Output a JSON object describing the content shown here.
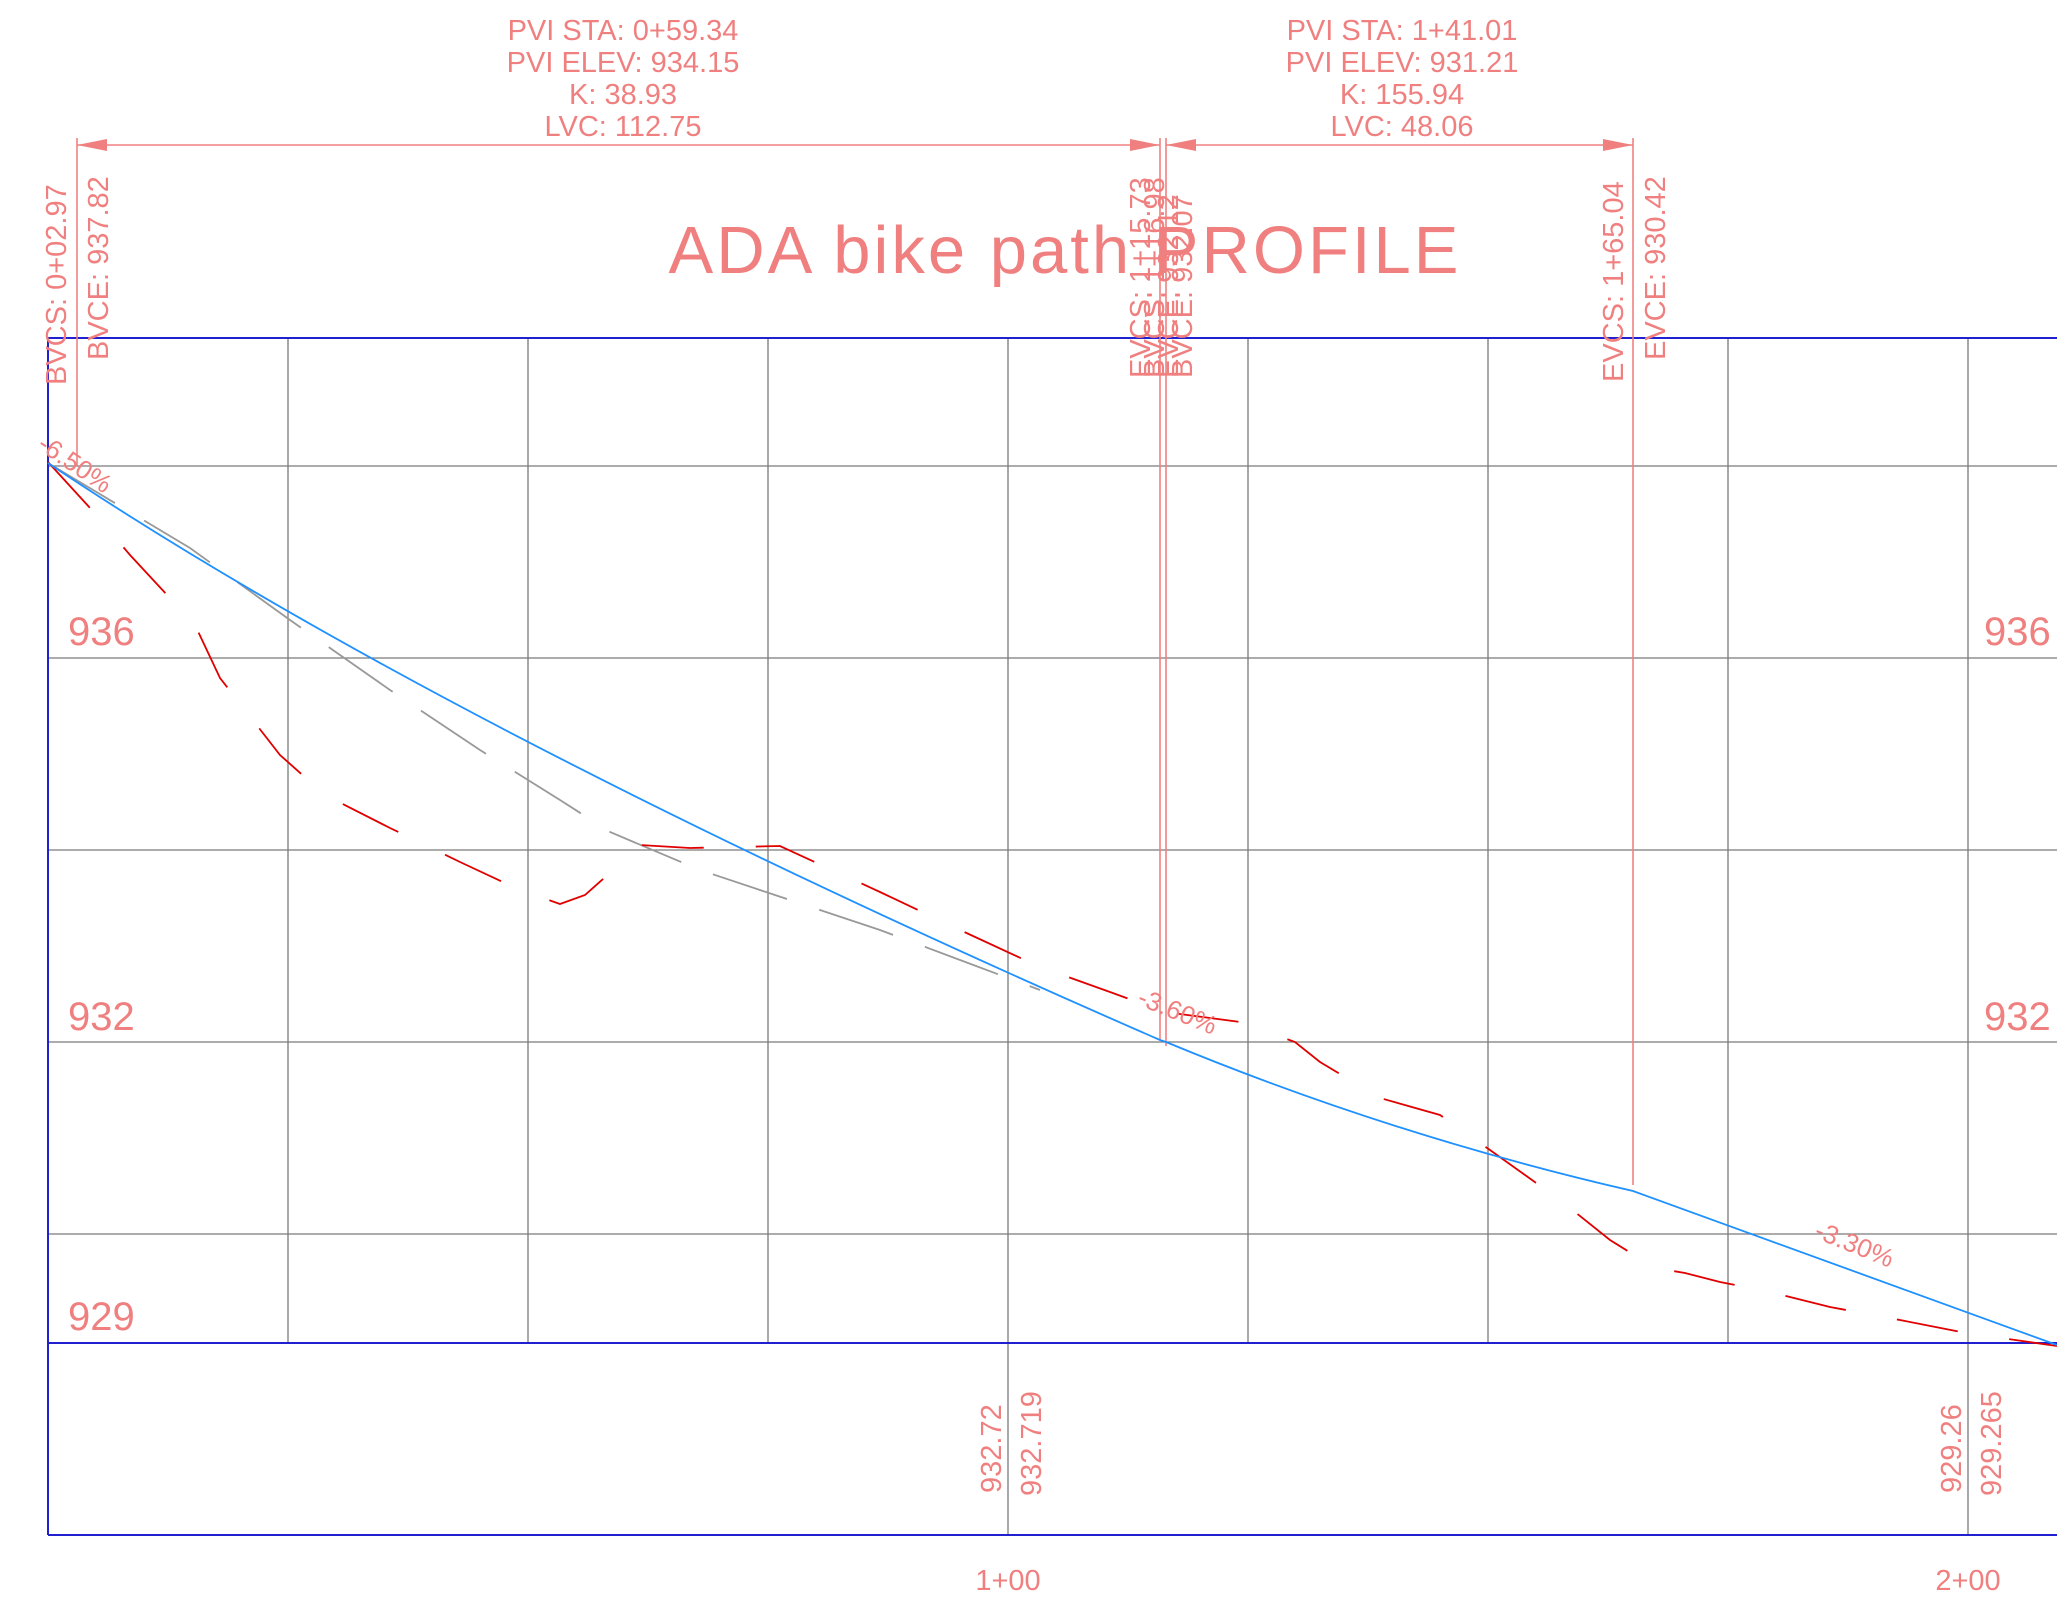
{
  "title": "ADA bike path PROFILE",
  "pvi_left": {
    "sta": "PVI STA: 0+59.34",
    "elev": "PVI ELEV: 934.15",
    "k": "K: 38.93",
    "lvc": "LVC: 112.75"
  },
  "pvi_right": {
    "sta": "PVI STA: 1+41.01",
    "elev": "PVI ELEV: 931.21",
    "k": "K: 155.94",
    "lvc": "LVC: 48.06"
  },
  "curve_points": {
    "bvcs_1": "BVCS: 0+02.97",
    "bvce_1": "BVCE: 937.82",
    "evcs_1": "EVCS: 1+15.73",
    "bvcs_2": "BVCS: 1+16.98",
    "evce_1": "EVCE: 932.12",
    "bvce_2": "BVCE: 932.07",
    "evcs_2": "EVCS: 1+65.04",
    "evce_2": "EVCE: 930.42"
  },
  "elevation_labels": {
    "left": [
      "936",
      "932",
      "929"
    ],
    "right": [
      "936",
      "932",
      "929"
    ]
  },
  "grades": [
    "-6.50%",
    "-3.60%",
    "-3.30%"
  ],
  "station_elevations": [
    {
      "station": "1+00",
      "existing": "932.72",
      "proposed": "932.719"
    },
    {
      "station": "2+00",
      "existing": "929.26",
      "proposed": "929.265"
    }
  ],
  "colors": {
    "annotation": "#f08080",
    "frame": "#2020d0",
    "grid": "#7a7a7a",
    "proposed_profile": "#1e90ff",
    "existing_ground": "#999999",
    "alternate_ground": "#e00000"
  }
}
